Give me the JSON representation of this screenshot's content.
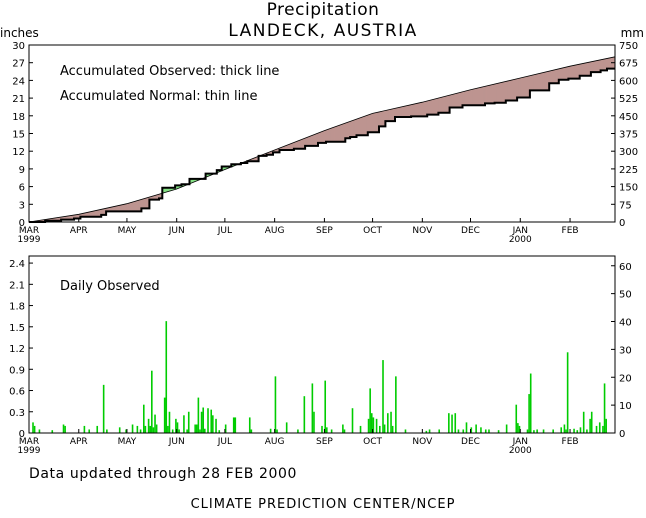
{
  "header": {
    "title": "Precipitation",
    "subtitle": "LANDECK, AUSTRIA"
  },
  "footer": {
    "updated": "Data updated through 28 FEB 2000",
    "credit": "CLIMATE PREDICTION CENTER/NCEP"
  },
  "colors": {
    "surplus": "#85e085",
    "deficit": "#bd9490",
    "daily_bar": "#00cc00",
    "line": "#000000"
  },
  "chart_data": [
    {
      "type": "area",
      "title": "Accumulated",
      "ylabel_left": "inches",
      "ylabel_right": "mm",
      "ylim": [
        0,
        30
      ],
      "ylim_right": [
        0,
        750
      ],
      "yticks_left": [
        "0",
        "3",
        "6",
        "9",
        "12",
        "15",
        "18",
        "21",
        "24",
        "27",
        "30"
      ],
      "yticks_right": [
        "0",
        "75",
        "150",
        "225",
        "300",
        "375",
        "450",
        "525",
        "600",
        "675",
        "750"
      ],
      "xlim_days": [
        0,
        365
      ],
      "month_ticks": [
        {
          "label": "MAR",
          "sub": "1999",
          "day": 0
        },
        {
          "label": "APR",
          "sub": "",
          "day": 31
        },
        {
          "label": "MAY",
          "sub": "",
          "day": 61
        },
        {
          "label": "JUN",
          "sub": "",
          "day": 92
        },
        {
          "label": "JUL",
          "sub": "",
          "day": 122
        },
        {
          "label": "AUG",
          "sub": "",
          "day": 153
        },
        {
          "label": "SEP",
          "sub": "",
          "day": 184
        },
        {
          "label": "OCT",
          "sub": "",
          "day": 214
        },
        {
          "label": "NOV",
          "sub": "",
          "day": 245
        },
        {
          "label": "DEC",
          "sub": "",
          "day": 275
        },
        {
          "label": "JAN",
          "sub": "2000",
          "day": 306
        },
        {
          "label": "FEB",
          "sub": "",
          "day": 337
        }
      ],
      "legend": [
        "Accumulated Observed: thick line",
        "Accumulated Normal: thin line"
      ],
      "series": [
        {
          "name": "Accumulated Observed",
          "points": [
            [
              0,
              0
            ],
            [
              10,
              0.2
            ],
            [
              20,
              0.4
            ],
            [
              28,
              0.6
            ],
            [
              32,
              0.9
            ],
            [
              45,
              1.2
            ],
            [
              48,
              1.8
            ],
            [
              70,
              2.3
            ],
            [
              75,
              3.8
            ],
            [
              81,
              4.0
            ],
            [
              83,
              5.8
            ],
            [
              91,
              6.2
            ],
            [
              95,
              6.4
            ],
            [
              100,
              7.3
            ],
            [
              110,
              8.2
            ],
            [
              117,
              8.8
            ],
            [
              120,
              9.4
            ],
            [
              126,
              9.8
            ],
            [
              132,
              10.0
            ],
            [
              136,
              10.3
            ],
            [
              143,
              11.2
            ],
            [
              148,
              11.4
            ],
            [
              152,
              11.8
            ],
            [
              156,
              12.2
            ],
            [
              165,
              12.4
            ],
            [
              172,
              12.9
            ],
            [
              177,
              12.9
            ],
            [
              180,
              13.4
            ],
            [
              185,
              13.6
            ],
            [
              190,
              13.6
            ],
            [
              197,
              14.2
            ],
            [
              200,
              14.4
            ],
            [
              204,
              14.7
            ],
            [
              211,
              15.2
            ],
            [
              218,
              16.2
            ],
            [
              222,
              17.1
            ],
            [
              228,
              17.8
            ],
            [
              238,
              17.9
            ],
            [
              248,
              18.2
            ],
            [
              255,
              18.5
            ],
            [
              262,
              19.4
            ],
            [
              270,
              19.8
            ],
            [
              279,
              19.8
            ],
            [
              284,
              20.1
            ],
            [
              290,
              20.2
            ],
            [
              297,
              20.6
            ],
            [
              304,
              21.1
            ],
            [
              312,
              22.3
            ],
            [
              320,
              22.3
            ],
            [
              324,
              23.5
            ],
            [
              330,
              24.1
            ],
            [
              336,
              24.3
            ],
            [
              343,
              24.8
            ],
            [
              350,
              25.4
            ],
            [
              356,
              25.7
            ],
            [
              360,
              26.0
            ],
            [
              365,
              26.0
            ]
          ]
        },
        {
          "name": "Accumulated Normal",
          "points": [
            [
              0,
              0
            ],
            [
              31,
              1.3
            ],
            [
              61,
              3.1
            ],
            [
              92,
              5.6
            ],
            [
              122,
              8.9
            ],
            [
              153,
              12.2
            ],
            [
              184,
              15.5
            ],
            [
              214,
              18.4
            ],
            [
              245,
              20.3
            ],
            [
              275,
              22.4
            ],
            [
              306,
              24.4
            ],
            [
              337,
              26.4
            ],
            [
              365,
              28.0
            ]
          ]
        }
      ]
    },
    {
      "type": "bar",
      "title": "Daily Observed",
      "ylim": [
        0,
        2.5
      ],
      "ylim_right": [
        0,
        63.5
      ],
      "yticks_left": [
        {
          "label": "0",
          "v": 0
        },
        {
          "label": "0.3",
          "v": 0.3
        },
        {
          "label": "0.6",
          "v": 0.6
        },
        {
          "label": "0.9",
          "v": 0.9
        },
        {
          "label": "1.2",
          "v": 1.2
        },
        {
          "label": "1.5",
          "v": 1.5
        },
        {
          "label": "1.8",
          "v": 1.8
        },
        {
          "label": "2.1",
          "v": 2.1
        },
        {
          "label": "2.4",
          "v": 2.4
        }
      ],
      "yticks_right": [
        {
          "label": "0",
          "v": 0
        },
        {
          "label": "10",
          "v": 10
        },
        {
          "label": "20",
          "v": 20
        },
        {
          "label": "30",
          "v": 30
        },
        {
          "label": "40",
          "v": 40
        },
        {
          "label": "50",
          "v": 50
        },
        {
          "label": "60",
          "v": 60
        }
      ],
      "bars": [
        [
          2,
          0.15
        ],
        [
          3,
          0.1
        ],
        [
          6,
          0.05
        ],
        [
          14,
          0.04
        ],
        [
          21,
          0.12
        ],
        [
          22,
          0.1
        ],
        [
          34,
          0.1
        ],
        [
          37,
          0.05
        ],
        [
          42,
          0.1
        ],
        [
          46,
          0.68
        ],
        [
          48,
          0.05
        ],
        [
          56,
          0.08
        ],
        [
          60,
          0.05
        ],
        [
          64,
          0.12
        ],
        [
          67,
          0.1
        ],
        [
          69,
          0.05
        ],
        [
          71,
          0.4
        ],
        [
          72,
          0.1
        ],
        [
          74,
          0.2
        ],
        [
          75,
          0.1
        ],
        [
          76,
          0.88
        ],
        [
          77,
          0.08
        ],
        [
          78,
          0.26
        ],
        [
          79,
          0.12
        ],
        [
          84,
          0.5
        ],
        [
          85,
          1.58
        ],
        [
          86,
          0.1
        ],
        [
          87,
          0.3
        ],
        [
          89,
          0.05
        ],
        [
          91,
          0.2
        ],
        [
          92,
          0.15
        ],
        [
          93,
          0.05
        ],
        [
          96,
          0.25
        ],
        [
          98,
          0.05
        ],
        [
          99,
          0.3
        ],
        [
          103,
          0.12
        ],
        [
          104,
          0.12
        ],
        [
          105,
          0.5
        ],
        [
          106,
          0.05
        ],
        [
          107,
          0.3
        ],
        [
          108,
          0.36
        ],
        [
          109,
          0.06
        ],
        [
          111,
          0.35
        ],
        [
          113,
          0.33
        ],
        [
          114,
          0.25
        ],
        [
          116,
          0.2
        ],
        [
          118,
          0.04
        ],
        [
          122,
          0.12
        ],
        [
          127,
          0.22
        ],
        [
          128,
          0.22
        ],
        [
          137,
          0.22
        ],
        [
          138,
          0.05
        ],
        [
          150,
          0.06
        ],
        [
          153,
          0.8
        ],
        [
          154,
          0.05
        ],
        [
          160,
          0.15
        ],
        [
          167,
          0.05
        ],
        [
          171,
          0.52
        ],
        [
          176,
          0.7
        ],
        [
          177,
          0.3
        ],
        [
          182,
          0.1
        ],
        [
          184,
          0.74
        ],
        [
          185,
          0.08
        ],
        [
          188,
          0.05
        ],
        [
          195,
          0.12
        ],
        [
          196,
          0.05
        ],
        [
          201,
          0.35
        ],
        [
          206,
          0.1
        ],
        [
          211,
          0.2
        ],
        [
          212,
          0.63
        ],
        [
          213,
          0.28
        ],
        [
          214,
          0.22
        ],
        [
          216,
          0.2
        ],
        [
          218,
          0.1
        ],
        [
          220,
          1.03
        ],
        [
          221,
          0.12
        ],
        [
          223,
          0.28
        ],
        [
          225,
          0.3
        ],
        [
          226,
          0.1
        ],
        [
          228,
          0.8
        ],
        [
          234,
          0.05
        ],
        [
          247,
          0.03
        ],
        [
          249,
          0.05
        ],
        [
          255,
          0.05
        ],
        [
          261,
          0.28
        ],
        [
          263,
          0.26
        ],
        [
          265,
          0.28
        ],
        [
          267,
          0.05
        ],
        [
          270,
          0.05
        ],
        [
          272,
          0.15
        ],
        [
          275,
          0.08
        ],
        [
          278,
          0.12
        ],
        [
          281,
          0.08
        ],
        [
          284,
          0.05
        ],
        [
          286,
          0.05
        ],
        [
          292,
          0.04
        ],
        [
          297,
          0.12
        ],
        [
          303,
          0.4
        ],
        [
          304,
          0.14
        ],
        [
          305,
          0.1
        ],
        [
          310,
          0.05
        ],
        [
          311,
          0.55
        ],
        [
          312,
          0.84
        ],
        [
          314,
          0.04
        ],
        [
          316,
          0.05
        ],
        [
          320,
          0.05
        ],
        [
          326,
          0.05
        ],
        [
          331,
          0.08
        ],
        [
          333,
          0.12
        ],
        [
          334,
          0.05
        ],
        [
          335,
          1.14
        ],
        [
          339,
          0.06
        ],
        [
          341,
          0.04
        ],
        [
          343,
          0.08
        ],
        [
          345,
          0.3
        ],
        [
          347,
          0.05
        ],
        [
          349,
          0.2
        ],
        [
          350,
          0.3
        ],
        [
          353,
          0.1
        ],
        [
          355,
          0.15
        ],
        [
          357,
          0.1
        ],
        [
          358,
          0.7
        ],
        [
          359,
          0.2
        ]
      ]
    }
  ]
}
